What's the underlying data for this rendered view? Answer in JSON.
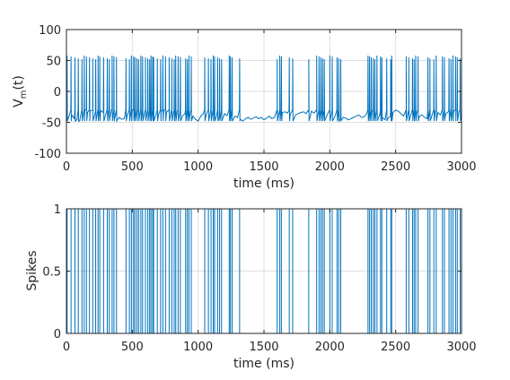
{
  "figure": {
    "background": "#ffffff",
    "line_color": "#0072BD",
    "grid_color": "#dfdfdf"
  },
  "chart_data": [
    {
      "type": "line",
      "title": "",
      "xlabel": "time (ms)",
      "ylabel_main": "V",
      "ylabel_sub": "m",
      "ylabel_tail": "(t)",
      "xlim": [
        0,
        3000
      ],
      "ylim": [
        -100,
        100
      ],
      "xticks": [
        0,
        500,
        1000,
        1500,
        2000,
        2500,
        3000
      ],
      "yticks": [
        -100,
        -50,
        0,
        50,
        100
      ],
      "xtick_labels": [
        "0",
        "500",
        "1000",
        "1500",
        "2000",
        "2500",
        "3000"
      ],
      "ytick_labels": [
        "-100",
        "-50",
        "0",
        "50",
        "100"
      ],
      "grid": true,
      "series": [
        {
          "x": [
            0,
            20,
            40,
            60,
            80,
            100,
            120,
            140,
            160,
            180,
            200,
            220,
            240,
            260,
            280,
            300,
            320,
            340,
            360,
            380,
            400,
            420,
            440,
            460,
            480,
            500,
            520,
            540,
            560,
            580,
            600,
            620,
            640,
            660,
            680,
            700,
            720,
            740,
            760,
            780,
            800,
            820,
            840,
            860,
            880,
            900,
            920,
            940,
            960,
            980,
            1000,
            1020,
            1040,
            1060,
            1080,
            1100,
            1120,
            1140,
            1160,
            1180,
            1200,
            1220,
            1240,
            1260,
            1280,
            1300,
            1320,
            1340,
            1360,
            1380,
            1400,
            1420,
            1440,
            1460,
            1480,
            1500,
            1520,
            1540,
            1560,
            1580,
            1600,
            1620,
            1640,
            1660,
            1680,
            1700,
            1720,
            1740,
            1760,
            1780,
            1800,
            1820,
            1840,
            1860,
            1880,
            1900,
            1920,
            1940,
            1960,
            1980,
            2000,
            2020,
            2040,
            2060,
            2080,
            2100,
            2120,
            2140,
            2160,
            2180,
            2200,
            2220,
            2240,
            2260,
            2280,
            2300,
            2320,
            2340,
            2360,
            2380,
            2400,
            2420,
            2440,
            2460,
            2480,
            2500,
            2520,
            2540,
            2560,
            2580,
            2600,
            2620,
            2640,
            2660,
            2680,
            2700,
            2720,
            2740,
            2760,
            2780,
            2800,
            2820,
            2840,
            2860,
            2880,
            2900,
            2920,
            2940,
            2960,
            2980,
            3000
          ],
          "y": [
            -35,
            -40,
            -38,
            -44,
            -46,
            -48,
            -36,
            -30,
            -34,
            -32,
            -30,
            -33,
            -29,
            -31,
            -34,
            -36,
            -33,
            -30,
            -35,
            -38,
            -42,
            -45,
            -44,
            -40,
            -32,
            -30,
            -28,
            -31,
            -33,
            -29,
            -27,
            -30,
            -32,
            -35,
            -38,
            -37,
            -32,
            -30,
            -33,
            -35,
            -31,
            -29,
            -34,
            -37,
            -40,
            -36,
            -32,
            -34,
            -40,
            -45,
            -48,
            -40,
            -36,
            -38,
            -35,
            -33,
            -37,
            -40,
            -42,
            -38,
            -36,
            -39,
            -41,
            -44,
            -40,
            -42,
            -45,
            -48,
            -44,
            -42,
            -45,
            -43,
            -41,
            -44,
            -42,
            -46,
            -43,
            -40,
            -44,
            -42,
            -38,
            -36,
            -34,
            -33,
            -35,
            -37,
            -40,
            -38,
            -36,
            -34,
            -33,
            -36,
            -34,
            -32,
            -35,
            -33,
            -31,
            -34,
            -36,
            -38,
            -35,
            -33,
            -40,
            -44,
            -45,
            -42,
            -43,
            -46,
            -44,
            -42,
            -40,
            -38,
            -42,
            -41,
            -36,
            -34,
            -33,
            -32,
            -35,
            -37,
            -42,
            -46,
            -44,
            -40,
            -34,
            -30,
            -32,
            -36,
            -40,
            -42,
            -38,
            -34,
            -32,
            -36,
            -40,
            -38,
            -42,
            -44,
            -40,
            -36,
            -32,
            -34,
            -38,
            -44,
            -36,
            -33,
            -30,
            -32,
            -31,
            -33,
            -30
          ]
        }
      ]
    },
    {
      "type": "bar",
      "title": "",
      "xlabel": "time (ms)",
      "ylabel": "Spikes",
      "xlim": [
        0,
        3000
      ],
      "ylim": [
        0,
        1
      ],
      "xticks": [
        0,
        500,
        1000,
        1500,
        2000,
        2500,
        3000
      ],
      "yticks": [
        0,
        0.5,
        1
      ],
      "xtick_labels": [
        "0",
        "500",
        "1000",
        "1500",
        "2000",
        "2500",
        "3000"
      ],
      "ytick_labels": [
        "0",
        "0.5",
        "1"
      ],
      "grid": true,
      "spike_value": 1,
      "spike_times": [
        5,
        35,
        65,
        90,
        118,
        135,
        152,
        175,
        200,
        222,
        240,
        253,
        282,
        310,
        325,
        347,
        361,
        380,
        452,
        478,
        493,
        510,
        520,
        535,
        548,
        565,
        578,
        600,
        618,
        632,
        642,
        655,
        662,
        690,
        715,
        732,
        752,
        780,
        800,
        818,
        830,
        848,
        865,
        905,
        918,
        930,
        948,
        1050,
        1078,
        1098,
        1115,
        1125,
        1148,
        1163,
        1178,
        1236,
        1245,
        1258,
        1315,
        1600,
        1620,
        1632,
        1692,
        1718,
        1840,
        1900,
        1918,
        1932,
        1945,
        1958,
        2000,
        2018,
        2055,
        2068,
        2083,
        2290,
        2302,
        2315,
        2330,
        2342,
        2358,
        2385,
        2395,
        2432,
        2463,
        2470,
        2580,
        2600,
        2628,
        2640,
        2652,
        2670,
        2745,
        2760,
        2790,
        2808,
        2855,
        2870,
        2905,
        2920,
        2935,
        2955,
        2968,
        2990
      ]
    }
  ]
}
